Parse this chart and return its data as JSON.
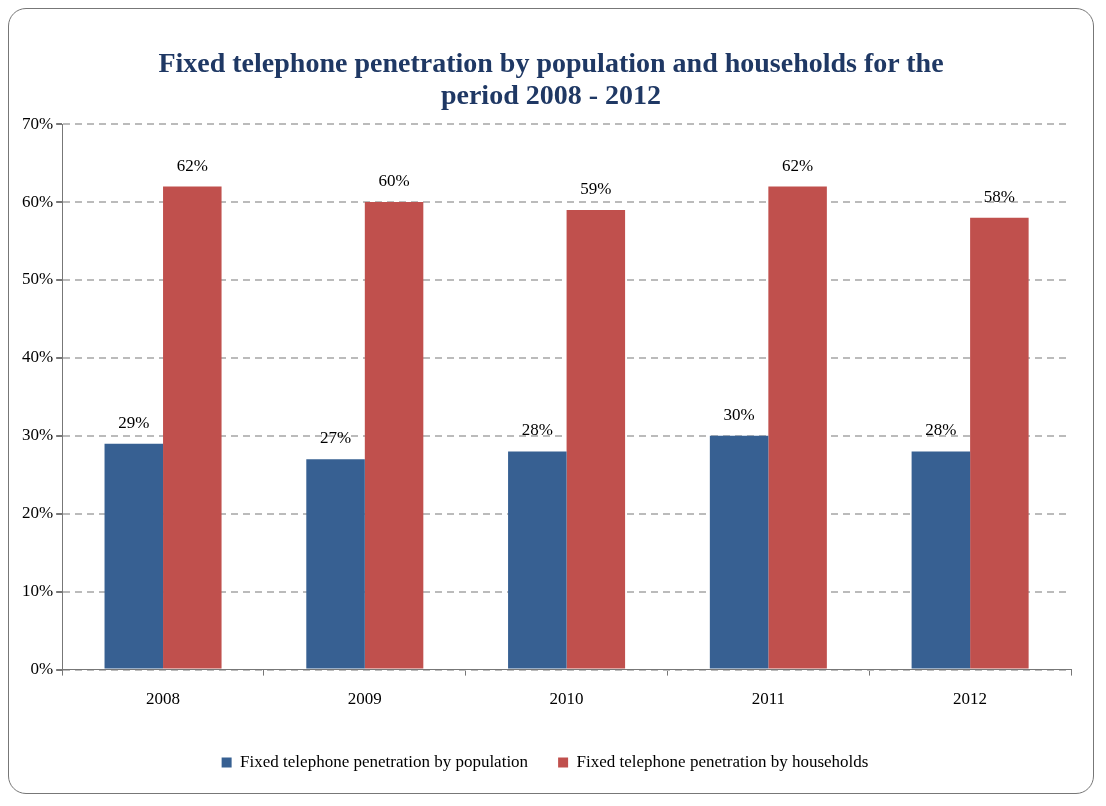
{
  "chart_data": {
    "type": "bar",
    "title": "Fixed telephone penetration by population and households for the period 2008 - 2012",
    "categories": [
      "2008",
      "2009",
      "2010",
      "2011",
      "2012"
    ],
    "series": [
      {
        "name": "Fixed telephone penetration by population",
        "color": "#376092",
        "values": [
          29,
          27,
          28,
          30,
          28
        ],
        "value_labels": [
          "29%",
          "27%",
          "28%",
          "30%",
          "28%"
        ]
      },
      {
        "name": "Fixed telephone penetration by households",
        "color": "#c0504d",
        "values": [
          62,
          60,
          59,
          62,
          58
        ],
        "value_labels": [
          "62%",
          "60%",
          "59%",
          "62%",
          "58%"
        ]
      }
    ],
    "ylim": [
      0,
      70
    ],
    "yticks": [
      {
        "value": 0,
        "label": "0%"
      },
      {
        "value": 10,
        "label": "10%"
      },
      {
        "value": 20,
        "label": "20%"
      },
      {
        "value": 30,
        "label": "30%"
      },
      {
        "value": 40,
        "label": "40%"
      },
      {
        "value": 50,
        "label": "50%"
      },
      {
        "value": 60,
        "label": "60%"
      },
      {
        "value": 70,
        "label": "70%"
      }
    ],
    "grid": "y",
    "legend": "bottom"
  }
}
